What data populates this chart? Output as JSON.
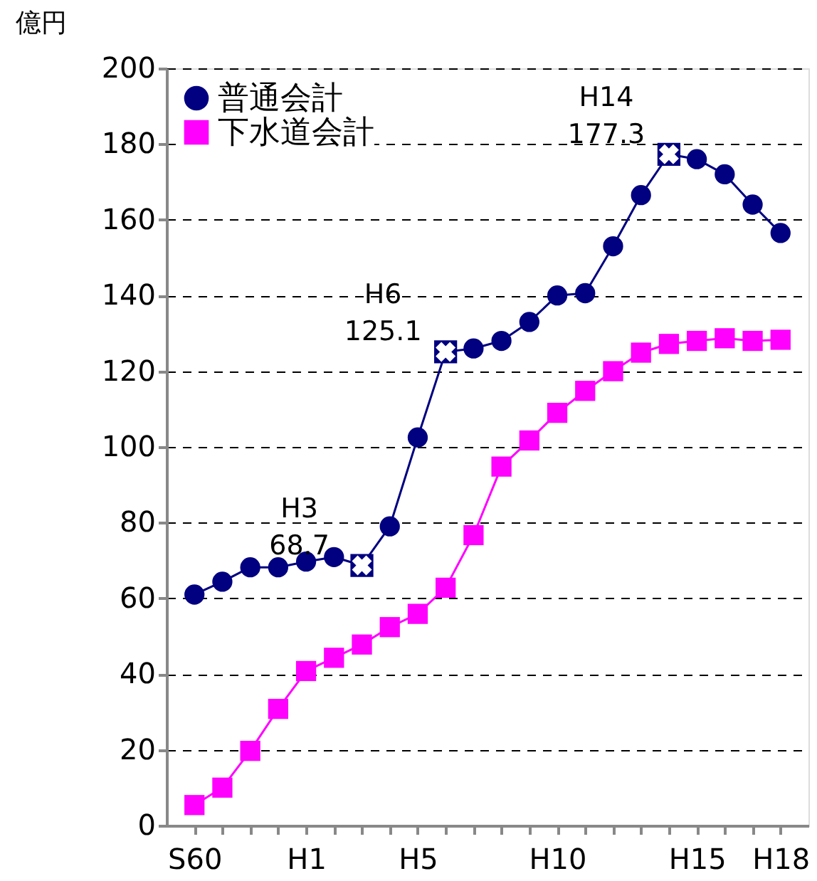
{
  "chart_data": {
    "type": "line",
    "ylabel": "億円",
    "categories": [
      "S60",
      null,
      null,
      null,
      "H1",
      null,
      null,
      null,
      "H5",
      null,
      null,
      null,
      null,
      "H10",
      null,
      null,
      null,
      null,
      "H15",
      null,
      null,
      "H18"
    ],
    "series": [
      {
        "name": "普通会計",
        "color": "#000080",
        "marker": "circle",
        "values": [
          61,
          64.4,
          68.2,
          68.2,
          69.7,
          70.9,
          68.7,
          79,
          102.5,
          125.1,
          126,
          128,
          133,
          140,
          140.6,
          153,
          166.5,
          177.3,
          176,
          172,
          164,
          156.5
        ],
        "value_labels": [
          null,
          null,
          null,
          null,
          null,
          null,
          "H3\n68.7",
          null,
          null,
          "H6\n125.1",
          null,
          null,
          null,
          null,
          null,
          null,
          null,
          "H14\n177.3",
          null,
          null,
          null,
          null
        ]
      },
      {
        "name": "下水道会計",
        "color": "#ff00ff",
        "marker": "square",
        "values": [
          5.4,
          10,
          19.7,
          30.8,
          40.8,
          44.3,
          47.8,
          52.4,
          55.9,
          62.8,
          76.7,
          94.8,
          101.7,
          109,
          114.8,
          120,
          124.9,
          127.2,
          128,
          128.7,
          128,
          128.3
        ]
      }
    ],
    "ylim": [
      0,
      200
    ],
    "yticks": [
      0,
      20,
      40,
      60,
      80,
      100,
      120,
      140,
      160,
      180,
      200
    ],
    "grid": "y",
    "legend": "top left",
    "line_style": "solid"
  }
}
